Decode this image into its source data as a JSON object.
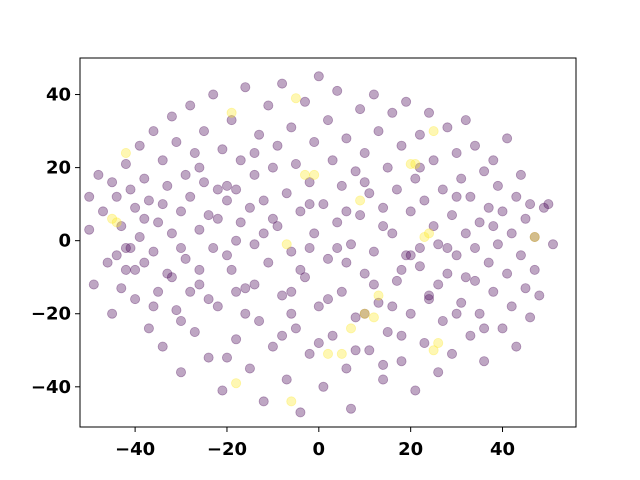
{
  "chart_data": {
    "type": "scatter",
    "title": "",
    "xlabel": "",
    "ylabel": "",
    "xlim": [
      -52,
      56
    ],
    "ylim": [
      -51,
      50
    ],
    "xticks": [
      -40,
      -20,
      0,
      20,
      40
    ],
    "yticks": [
      -40,
      -20,
      0,
      20,
      40
    ],
    "xtick_labels": [
      "−40",
      "−20",
      "0",
      "20",
      "40"
    ],
    "ytick_labels": [
      "−40",
      "−20",
      "0",
      "20",
      "40"
    ],
    "grid": false,
    "legend": "none",
    "marker_alpha": 0.35,
    "series": [
      {
        "color": "#440154",
        "points": [
          [
            -50,
            12
          ],
          [
            -50,
            3
          ],
          [
            -49,
            -12
          ],
          [
            -48,
            18
          ],
          [
            -47,
            8
          ],
          [
            -46,
            -6
          ],
          [
            -45,
            16
          ],
          [
            -45,
            -20
          ],
          [
            -44,
            12
          ],
          [
            -43,
            4
          ],
          [
            -43,
            -13
          ],
          [
            -42,
            21
          ],
          [
            -42,
            -8
          ],
          [
            -41,
            14
          ],
          [
            -41,
            -2
          ],
          [
            -40,
            9
          ],
          [
            -40,
            -16
          ],
          [
            -39,
            26
          ],
          [
            -39,
            1
          ],
          [
            -38,
            -6
          ],
          [
            -38,
            17
          ],
          [
            -37,
            -24
          ],
          [
            -37,
            11
          ],
          [
            -36,
            30
          ],
          [
            -36,
            -3
          ],
          [
            -35,
            5
          ],
          [
            -35,
            -14
          ],
          [
            -34,
            22
          ],
          [
            -34,
            -29
          ],
          [
            -33,
            15
          ],
          [
            -33,
            -9
          ],
          [
            -32,
            34
          ],
          [
            -32,
            2
          ],
          [
            -31,
            -19
          ],
          [
            -31,
            27
          ],
          [
            -30,
            8
          ],
          [
            -30,
            -36
          ],
          [
            -29,
            18
          ],
          [
            -29,
            -5
          ],
          [
            -28,
            37
          ],
          [
            -28,
            12
          ],
          [
            -27,
            -25
          ],
          [
            -27,
            24
          ],
          [
            -26,
            3
          ],
          [
            -26,
            -12
          ],
          [
            -25,
            30
          ],
          [
            -25,
            16
          ],
          [
            -24,
            -32
          ],
          [
            -24,
            7
          ],
          [
            -23,
            40
          ],
          [
            -23,
            -2
          ],
          [
            -22,
            14
          ],
          [
            -22,
            -18
          ],
          [
            -21,
            25
          ],
          [
            -21,
            -41
          ],
          [
            -20,
            15
          ],
          [
            -20,
            11
          ],
          [
            -19,
            -8
          ],
          [
            -19,
            33
          ],
          [
            -18,
            14
          ],
          [
            -18,
            -27
          ],
          [
            -17,
            5
          ],
          [
            -17,
            22
          ],
          [
            -16,
            -13
          ],
          [
            -16,
            42
          ],
          [
            -15,
            9
          ],
          [
            -15,
            -35
          ],
          [
            -14,
            18
          ],
          [
            -14,
            -1
          ],
          [
            -13,
            29
          ],
          [
            -13,
            -22
          ],
          [
            -12,
            11
          ],
          [
            -12,
            -44
          ],
          [
            -11,
            37
          ],
          [
            -11,
            -6
          ],
          [
            -10,
            20
          ],
          [
            -10,
            -29
          ],
          [
            -9,
            4
          ],
          [
            -9,
            26
          ],
          [
            -8,
            -15
          ],
          [
            -8,
            43
          ],
          [
            -7,
            13
          ],
          [
            -7,
            -38
          ],
          [
            -6,
            -3
          ],
          [
            -6,
            31
          ],
          [
            -5,
            21
          ],
          [
            -5,
            -24
          ],
          [
            -4,
            8
          ],
          [
            -4,
            -47
          ],
          [
            -3,
            38
          ],
          [
            -3,
            -10
          ],
          [
            -2,
            16
          ],
          [
            -2,
            -31
          ],
          [
            -1,
            2
          ],
          [
            -1,
            27
          ],
          [
            0,
            45
          ],
          [
            0,
            -18
          ],
          [
            1,
            10
          ],
          [
            1,
            -40
          ],
          [
            2,
            33
          ],
          [
            2,
            -5
          ],
          [
            3,
            22
          ],
          [
            3,
            -26
          ],
          [
            4,
            5
          ],
          [
            4,
            41
          ],
          [
            5,
            -14
          ],
          [
            5,
            15
          ],
          [
            6,
            -35
          ],
          [
            6,
            28
          ],
          [
            7,
            -1
          ],
          [
            7,
            -46
          ],
          [
            8,
            19
          ],
          [
            8,
            -21
          ],
          [
            9,
            36
          ],
          [
            9,
            7
          ],
          [
            10,
            -9
          ],
          [
            10,
            24
          ],
          [
            11,
            -30
          ],
          [
            11,
            13
          ],
          [
            12,
            40
          ],
          [
            12,
            -3
          ],
          [
            13,
            -17
          ],
          [
            13,
            30
          ],
          [
            14,
            9
          ],
          [
            14,
            -38
          ],
          [
            15,
            20
          ],
          [
            15,
            -25
          ],
          [
            16,
            2
          ],
          [
            16,
            35
          ],
          [
            17,
            -11
          ],
          [
            17,
            14
          ],
          [
            18,
            -33
          ],
          [
            18,
            26
          ],
          [
            19,
            -4
          ],
          [
            19,
            38
          ],
          [
            20,
            8
          ],
          [
            20,
            -20
          ],
          [
            21,
            17
          ],
          [
            21,
            -41
          ],
          [
            22,
            29
          ],
          [
            22,
            -7
          ],
          [
            23,
            -28
          ],
          [
            23,
            11
          ],
          [
            24,
            35
          ],
          [
            24,
            -15
          ],
          [
            25,
            4
          ],
          [
            25,
            22
          ],
          [
            26,
            -36
          ],
          [
            26,
            -1
          ],
          [
            27,
            14
          ],
          [
            27,
            -22
          ],
          [
            28,
            31
          ],
          [
            28,
            -9
          ],
          [
            29,
            7
          ],
          [
            29,
            -31
          ],
          [
            30,
            24
          ],
          [
            30,
            -4
          ],
          [
            31,
            17
          ],
          [
            31,
            -17
          ],
          [
            32,
            33
          ],
          [
            32,
            2
          ],
          [
            33,
            -26
          ],
          [
            33,
            12
          ],
          [
            34,
            -11
          ],
          [
            34,
            26
          ],
          [
            35,
            5
          ],
          [
            35,
            -20
          ],
          [
            36,
            19
          ],
          [
            36,
            -33
          ],
          [
            37,
            9
          ],
          [
            37,
            -6
          ],
          [
            38,
            22
          ],
          [
            38,
            -14
          ],
          [
            39,
            -1
          ],
          [
            39,
            15
          ],
          [
            40,
            -24
          ],
          [
            40,
            8
          ],
          [
            41,
            28
          ],
          [
            41,
            -9
          ],
          [
            42,
            2
          ],
          [
            42,
            -18
          ],
          [
            43,
            12
          ],
          [
            43,
            -29
          ],
          [
            44,
            -4
          ],
          [
            44,
            18
          ],
          [
            45,
            6
          ],
          [
            45,
            -13
          ],
          [
            46,
            -21
          ],
          [
            46,
            10
          ],
          [
            47,
            1
          ],
          [
            47,
            -8
          ],
          [
            48,
            -15
          ],
          [
            49,
            9
          ],
          [
            50,
            10
          ],
          [
            51,
            -1
          ],
          [
            -44,
            -4
          ],
          [
            -36,
            -18
          ],
          [
            -28,
            -14
          ],
          [
            -20,
            -4
          ],
          [
            -12,
            2
          ],
          [
            -4,
            -8
          ],
          [
            4,
            -2
          ],
          [
            12,
            -12
          ],
          [
            20,
            -4
          ],
          [
            28,
            -2
          ],
          [
            -38,
            6
          ],
          [
            -30,
            -2
          ],
          [
            -22,
            6
          ],
          [
            -14,
            -12
          ],
          [
            -6,
            -14
          ],
          [
            2,
            -16
          ],
          [
            10,
            -20
          ],
          [
            18,
            -8
          ],
          [
            26,
            -12
          ],
          [
            34,
            -2
          ],
          [
            -34,
            10
          ],
          [
            -26,
            -8
          ],
          [
            -18,
            0
          ],
          [
            -10,
            6
          ],
          [
            -2,
            -2
          ],
          [
            6,
            8
          ],
          [
            14,
            4
          ],
          [
            22,
            -2
          ],
          [
            30,
            12
          ],
          [
            38,
            4
          ],
          [
            -40,
            -8
          ],
          [
            -32,
            -10
          ],
          [
            -24,
            -16
          ],
          [
            -16,
            -20
          ],
          [
            -8,
            -26
          ],
          [
            0,
            -28
          ],
          [
            8,
            -30
          ],
          [
            16,
            -18
          ],
          [
            24,
            -16
          ],
          [
            32,
            -10
          ],
          [
            -26,
            20
          ],
          [
            -14,
            24
          ],
          [
            -2,
            10
          ],
          [
            10,
            16
          ],
          [
            22,
            20
          ],
          [
            -42,
            -2
          ],
          [
            -18,
            -14
          ],
          [
            6,
            -6
          ],
          [
            18,
            -26
          ],
          [
            36,
            -24
          ],
          [
            -30,
            -22
          ],
          [
            -6,
            -20
          ],
          [
            14,
            -34
          ],
          [
            30,
            -20
          ],
          [
            -20,
            -32
          ]
        ]
      },
      {
        "color": "#fde725",
        "points": [
          [
            -42,
            24
          ],
          [
            -45,
            6
          ],
          [
            -44,
            5
          ],
          [
            -19,
            35
          ],
          [
            -18,
            -39
          ],
          [
            -5,
            39
          ],
          [
            -6,
            -44
          ],
          [
            -3,
            18
          ],
          [
            -1,
            18
          ],
          [
            -7,
            -1
          ],
          [
            9,
            11
          ],
          [
            13,
            -15
          ],
          [
            20,
            21
          ],
          [
            21,
            21
          ],
          [
            23,
            1
          ],
          [
            24,
            2
          ],
          [
            25,
            30
          ],
          [
            47,
            1
          ],
          [
            5,
            -31
          ],
          [
            7,
            -24
          ],
          [
            10,
            -20
          ],
          [
            12,
            -21
          ],
          [
            26,
            -28
          ],
          [
            2,
            -31
          ],
          [
            25,
            -30
          ]
        ]
      }
    ]
  }
}
